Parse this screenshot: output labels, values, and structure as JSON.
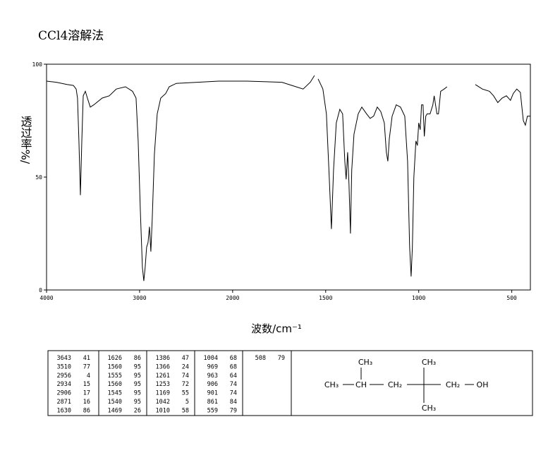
{
  "chart_data": {
    "type": "line",
    "title": "CCl4溶解法",
    "x_label": "波数/cm⁻¹",
    "y_label": "透过率%/",
    "x": [
      4000,
      3894,
      3780,
      3712,
      3682,
      3667,
      3652,
      3636,
      3621,
      3606,
      3583,
      3561,
      3530,
      3492,
      3402,
      3326,
      3250,
      3152,
      3076,
      3038,
      3015,
      2992,
      2970,
      2955,
      2940,
      2924,
      2909,
      2894,
      2879,
      2864,
      2841,
      2811,
      2773,
      2720,
      2682,
      2606,
      2379,
      2152,
      1924,
      1735,
      1659,
      1621,
      1583,
      1560,
      1555,
      1541,
      1515,
      1496,
      1481,
      1469,
      1458,
      1443,
      1424,
      1409,
      1397,
      1390,
      1382,
      1375,
      1367,
      1360,
      1348,
      1325,
      1306,
      1280,
      1261,
      1242,
      1223,
      1204,
      1185,
      1174,
      1166,
      1158,
      1143,
      1121,
      1098,
      1075,
      1060,
      1049,
      1041,
      1034,
      1026,
      1015,
      1007,
      1000,
      992,
      985,
      977,
      970,
      962,
      955,
      939,
      924,
      917,
      902,
      894,
      882,
      863,
      848,
      800,
      696,
      658,
      620,
      598,
      575,
      552,
      529,
      507,
      492,
      473,
      454,
      438,
      427,
      416,
      400
    ],
    "values": [
      92.5,
      92,
      91,
      90.6,
      89,
      85,
      66,
      42,
      66,
      86,
      88,
      85,
      81,
      82,
      85,
      86,
      89,
      90,
      88,
      85,
      66,
      35,
      10,
      4,
      10,
      19,
      21,
      28,
      17,
      32,
      60,
      78,
      85,
      87,
      90,
      91.5,
      92,
      92.5,
      92.5,
      92,
      90,
      89,
      92,
      95,
      null,
      93.5,
      89,
      78,
      50,
      27,
      53,
      74,
      80,
      78,
      57,
      49,
      61,
      47,
      25,
      53,
      69,
      78,
      81,
      78,
      76,
      77,
      81,
      79,
      74,
      61,
      57,
      67,
      77,
      82,
      81,
      77,
      57,
      19,
      6,
      19,
      50,
      66,
      64,
      74,
      71,
      82,
      82,
      68,
      77,
      78,
      78,
      82,
      86,
      78,
      78,
      88,
      89,
      90,
      null,
      91,
      89,
      88,
      86,
      83,
      85,
      86,
      84,
      87,
      89,
      87.5,
      75,
      73,
      77,
      77
    ],
    "color": "#000000",
    "xlim": [
      4000,
      400
    ],
    "x_scale_break": 2000,
    "xticks": [
      4000,
      3000,
      2000,
      1500,
      1000,
      500
    ],
    "ylim": [
      0,
      100
    ],
    "yticks": [
      0,
      50,
      100
    ]
  },
  "peak_table": [
    [
      [
        3643,
        41
      ],
      [
        3510,
        77
      ],
      [
        2956,
        4
      ],
      [
        2934,
        15
      ],
      [
        2906,
        17
      ],
      [
        2871,
        16
      ],
      [
        1630,
        86
      ]
    ],
    [
      [
        1626,
        86
      ],
      [
        1560,
        95
      ],
      [
        1555,
        95
      ],
      [
        1560,
        95
      ],
      [
        1545,
        95
      ],
      [
        1540,
        95
      ],
      [
        1469,
        26
      ]
    ],
    [
      [
        1386,
        47
      ],
      [
        1366,
        24
      ],
      [
        1261,
        74
      ],
      [
        1253,
        72
      ],
      [
        1169,
        55
      ],
      [
        1042,
        5
      ],
      [
        1010,
        58
      ]
    ],
    [
      [
        1004,
        68
      ],
      [
        969,
        68
      ],
      [
        963,
        64
      ],
      [
        906,
        74
      ],
      [
        901,
        74
      ],
      [
        861,
        84
      ],
      [
        559,
        79
      ]
    ],
    [
      [
        508,
        79
      ]
    ]
  ],
  "structure": {
    "nodes": [
      "CH₃",
      "CH₃",
      "CH₃",
      "CH",
      "CH₂",
      "CH₂",
      "OH",
      "CH₃"
    ]
  }
}
